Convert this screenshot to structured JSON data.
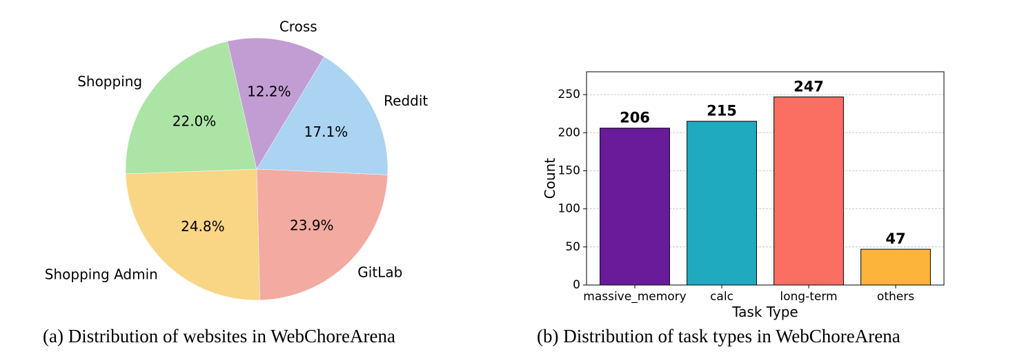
{
  "captions": {
    "a": "(a) Distribution of websites in WebChoreArena",
    "b": "(b) Distribution of task types in WebChoreArena"
  },
  "chart_data": [
    {
      "type": "pie",
      "slices": [
        {
          "label": "Reddit",
          "value": 17.1,
          "pct_label": "17.1%",
          "color": "#abd3f2"
        },
        {
          "label": "GitLab",
          "value": 23.9,
          "pct_label": "23.9%",
          "color": "#f3aaa0"
        },
        {
          "label": "Shopping Admin",
          "value": 24.8,
          "pct_label": "24.8%",
          "color": "#f9d586"
        },
        {
          "label": "Shopping",
          "value": 22.0,
          "pct_label": "22.0%",
          "color": "#abe4a5"
        },
        {
          "label": "Cross",
          "value": 12.2,
          "pct_label": "12.2%",
          "color": "#c29dd3"
        }
      ],
      "start_angle_deg": 59,
      "direction": "clockwise"
    },
    {
      "type": "bar",
      "categories": [
        "massive_memory",
        "calc",
        "long-term",
        "others"
      ],
      "values": [
        206,
        215,
        247,
        47
      ],
      "value_labels": [
        "206",
        "215",
        "247",
        "47"
      ],
      "colors": [
        "#6a1b9a",
        "#1faabf",
        "#fb6e62",
        "#fdb43a"
      ],
      "xlabel": "Task Type",
      "ylabel": "Count",
      "ylim": [
        0,
        280
      ],
      "yticks": [
        0,
        50,
        100,
        150,
        200,
        250
      ],
      "ytick_labels": [
        "0",
        "50",
        "100",
        "150",
        "200",
        "250"
      ],
      "grid": "y-dashed"
    }
  ]
}
